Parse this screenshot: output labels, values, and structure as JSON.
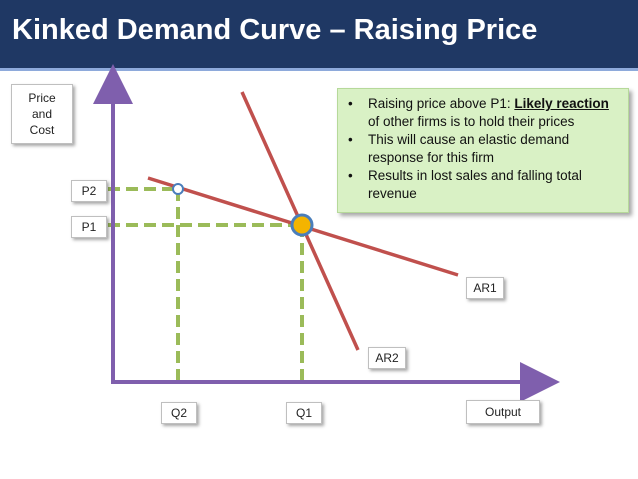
{
  "title": "Kinked Demand Curve – Raising Price",
  "labels": {
    "y_axis": "Price\nand\nCost",
    "x_axis": "Output",
    "p1": "P1",
    "p2": "P2",
    "q1": "Q1",
    "q2": "Q2",
    "ar1": "AR1",
    "ar2": "AR2"
  },
  "note": {
    "bullets": [
      {
        "plain": "Raising price above P1: ",
        "emph": "Likely reaction",
        "rest": " of other firms is to hold their prices"
      },
      {
        "plain": "This will cause an elastic demand response for this firm",
        "emph": "",
        "rest": ""
      },
      {
        "plain": "Results in lost sales and falling total revenue",
        "emph": "",
        "rest": ""
      }
    ]
  },
  "colors": {
    "title_bar": "#1f3864",
    "axis": "#7f5fad",
    "curve": "#c0504d",
    "guide": "#9bbb59",
    "kink_point": "#f4b400",
    "kink_ring": "#4a7ebb",
    "note_bg": "#d9f1c5"
  }
}
